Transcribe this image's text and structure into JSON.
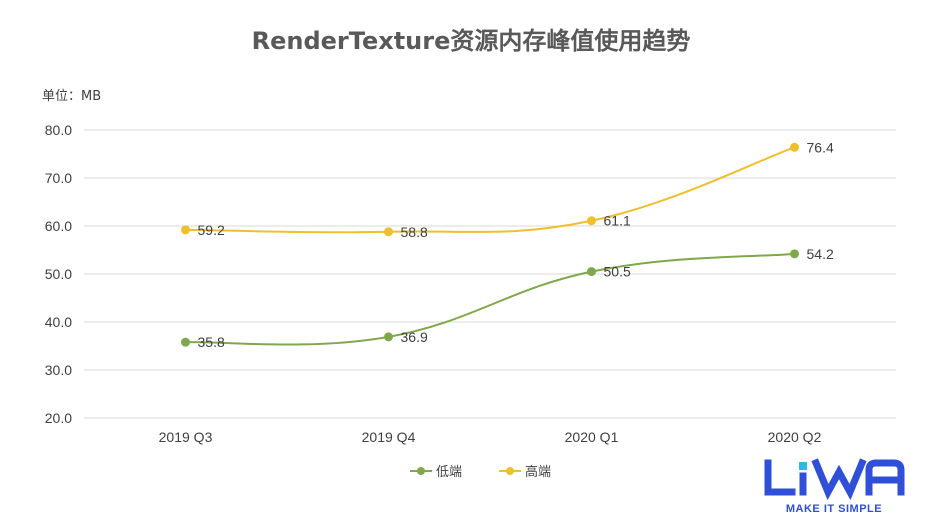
{
  "chart_data": {
    "type": "line",
    "title": "RenderTexture资源内存峰值使用趋势",
    "unit_label": "单位：MB",
    "categories": [
      "2019 Q3",
      "2019 Q4",
      "2020 Q1",
      "2020 Q2"
    ],
    "y_ticks": [
      "20.0",
      "30.0",
      "40.0",
      "50.0",
      "60.0",
      "70.0",
      "80.0"
    ],
    "ylim": [
      20,
      80
    ],
    "grid": true,
    "smooth": true,
    "legend_position": "bottom",
    "series": [
      {
        "name": "低端",
        "color": "#7fa84a",
        "values": [
          35.8,
          36.9,
          50.5,
          54.2
        ],
        "labels": [
          "35.8",
          "36.9",
          "50.5",
          "54.2"
        ]
      },
      {
        "name": "高端",
        "color": "#f0bf2c",
        "values": [
          59.2,
          58.8,
          61.1,
          76.4
        ],
        "labels": [
          "59.2",
          "58.8",
          "61.1",
          "76.4"
        ]
      }
    ]
  },
  "logo": {
    "text": "LiWA",
    "tagline": "MAKE IT SIMPLE",
    "color": "#2f4fd8",
    "accent": "#35b4e8"
  }
}
